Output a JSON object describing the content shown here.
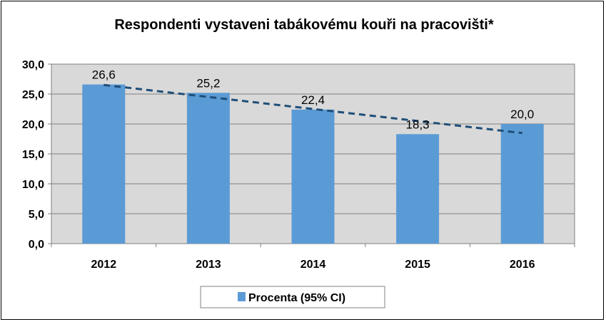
{
  "chart_data": {
    "type": "bar",
    "title": "Respondenti vystaveni tabákovému kouři na pracovišti*",
    "categories": [
      "2012",
      "2013",
      "2014",
      "2015",
      "2016"
    ],
    "series": [
      {
        "name": "Procenta (95% CI)",
        "values": [
          26.6,
          25.2,
          22.4,
          18.3,
          20.0
        ],
        "color": "#5b9bd5"
      }
    ],
    "data_labels": [
      "26,6",
      "25,2",
      "22,4",
      "18,3",
      "20,0"
    ],
    "ylim": [
      0,
      30
    ],
    "yticks": [
      "0,0",
      "5,0",
      "10,0",
      "15,0",
      "20,0",
      "25,0",
      "30,0"
    ],
    "ytick_values": [
      0,
      5,
      10,
      15,
      20,
      25,
      30
    ],
    "trendline": {
      "type": "linear",
      "style": "dashed",
      "color": "#1f4e79"
    },
    "grid": true,
    "plot_background": "#d9d9d9",
    "legend_position": "bottom"
  }
}
